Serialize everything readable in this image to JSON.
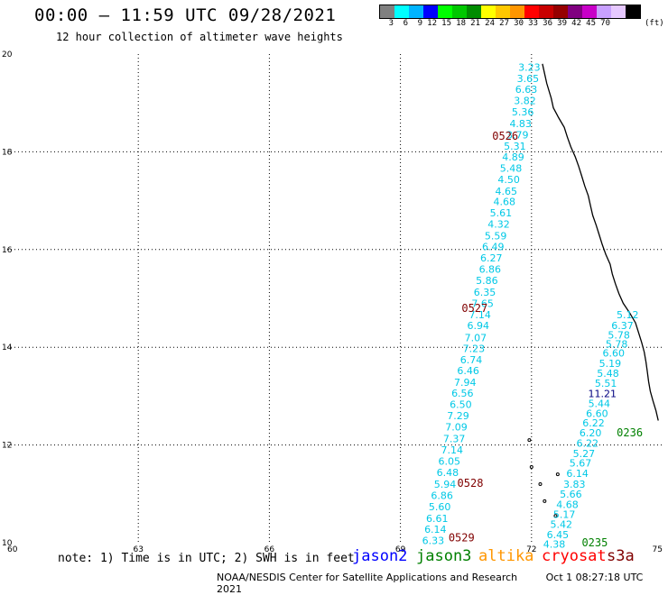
{
  "header": {
    "title": "00:00 – 11:59 UTC 09/28/2021",
    "subtitle": "12 hour collection of altimeter wave heights"
  },
  "legend": {
    "colors": [
      "#808080",
      "#00ffff",
      "#00b4ff",
      "#0000ff",
      "#00ff00",
      "#00c800",
      "#008c00",
      "#ffff00",
      "#ffc800",
      "#ff9600",
      "#ff0000",
      "#c80000",
      "#960000",
      "#800080",
      "#c800c8",
      "#c8a0ff",
      "#e6c8ff",
      "#000000"
    ],
    "labels": [
      "3",
      "6",
      "9",
      "12",
      "15",
      "18",
      "21",
      "24",
      "27",
      "30",
      "33",
      "36",
      "39",
      "42",
      "45",
      "70"
    ],
    "unit": "(ft)"
  },
  "axes": {
    "x_labels": [
      "60",
      "63",
      "66",
      "69",
      "72",
      "75"
    ],
    "y_labels": [
      "10",
      "12",
      "14",
      "16",
      "18",
      "20"
    ]
  },
  "tracks": [
    {
      "pass": "0526",
      "pass_color": "#800000",
      "pass_pos": [
        71.1,
        18.32
      ],
      "values": [
        "3.23",
        "3.65",
        "6.63",
        "3.82",
        "5.36",
        "4.83",
        "3.79",
        "5.31",
        "4.89",
        "5.48",
        "4.50",
        "4.65",
        "4.68",
        "5.61",
        "4.32",
        "5.59",
        "6.49",
        "6.27",
        "6.86",
        "5.86",
        "6.35",
        "7.65",
        "7.14"
      ],
      "lons": [
        71.95,
        71.92,
        71.88,
        71.85,
        71.8,
        71.75,
        71.68,
        71.62,
        71.58,
        71.53,
        71.48,
        71.42,
        71.38,
        71.3,
        71.25,
        71.18,
        71.12,
        71.08,
        71.05,
        70.98,
        70.93,
        70.88,
        70.82
      ],
      "lats": [
        19.73,
        19.5,
        19.28,
        19.05,
        18.82,
        18.58,
        18.35,
        18.12,
        17.9,
        17.67,
        17.44,
        17.2,
        16.98,
        16.75,
        16.52,
        16.28,
        16.06,
        15.83,
        15.6,
        15.37,
        15.13,
        14.9,
        14.67
      ],
      "color": "#00c8e6"
    },
    {
      "pass": "0527",
      "pass_color": "#800000",
      "pass_pos": [
        70.4,
        14.8
      ],
      "values": [
        "6.94",
        "7.07",
        "7.23",
        "6.74",
        "6.46",
        "7.94",
        "6.56",
        "6.50",
        "7.29",
        "7.09",
        "7.37",
        "7.14",
        "6.05",
        "6.48",
        "5.94",
        "6.86",
        "5.60",
        "6.61",
        "6.14",
        "6.33"
      ],
      "lons": [
        70.78,
        70.72,
        70.68,
        70.62,
        70.55,
        70.48,
        70.42,
        70.38,
        70.32,
        70.28,
        70.23,
        70.18,
        70.12,
        70.08,
        70.02,
        69.95,
        69.9,
        69.84,
        69.8,
        69.75
      ],
      "lats": [
        14.45,
        14.2,
        13.98,
        13.75,
        13.52,
        13.28,
        13.06,
        12.83,
        12.6,
        12.37,
        12.13,
        11.9,
        11.67,
        11.44,
        11.2,
        10.97,
        10.74,
        10.5,
        10.28,
        10.05
      ],
      "color": "#00c8e6"
    },
    {
      "pass": "0528",
      "pass_color": "#800000",
      "pass_pos": [
        70.3,
        11.22
      ],
      "values": [],
      "lons": [],
      "lats": [],
      "color": "#00c8e6"
    },
    {
      "pass": "0529",
      "pass_color": "#800000",
      "pass_pos": [
        70.1,
        10.1
      ],
      "values": [],
      "lons": [],
      "lats": [],
      "color": "#00c8e6"
    },
    {
      "pass": "0236",
      "pass_color": "#008000",
      "pass_pos": [
        73.95,
        12.25
      ],
      "values": [
        "5.12",
        "6.37",
        "5.78",
        "5.78",
        "6.60",
        "5.19",
        "5.48",
        "5.51",
        "11.21",
        "5.44",
        "6.60",
        "6.22",
        "6.20",
        "6.22",
        "5.27",
        "5.67",
        "6.14",
        "3.83",
        "5.66",
        "4.68",
        "5.17",
        "5.42",
        "6.45",
        "4.38"
      ],
      "lons": [
        74.2,
        74.08,
        74.0,
        73.95,
        73.88,
        73.8,
        73.75,
        73.7,
        73.62,
        73.55,
        73.5,
        73.42,
        73.35,
        73.28,
        73.2,
        73.12,
        73.05,
        72.98,
        72.9,
        72.82,
        72.75,
        72.68,
        72.6,
        72.52
      ],
      "lats": [
        14.67,
        14.45,
        14.25,
        14.07,
        13.88,
        13.67,
        13.47,
        13.27,
        13.05,
        12.85,
        12.65,
        12.45,
        12.25,
        12.04,
        11.83,
        11.63,
        11.42,
        11.2,
        11.0,
        10.78,
        10.58,
        10.38,
        10.17,
        9.97
      ],
      "color": "#00c8e6",
      "special": {
        "index": 8,
        "color": "#000080"
      }
    },
    {
      "pass": "0235",
      "pass_color": "#008000",
      "pass_pos": [
        73.15,
        10.0
      ],
      "values": [],
      "lons": [],
      "lats": [],
      "color": "#00c8e6"
    }
  ],
  "footer": {
    "note": "note: 1) Time is in UTC; 2) SWH is in feet",
    "satellites": [
      {
        "name": "jason2",
        "color": "#0000ff"
      },
      {
        "name": "jason3",
        "color": "#008000"
      },
      {
        "name": "altika",
        "color": "#ff9600"
      },
      {
        "name": "cryosat",
        "color": "#ff0000"
      },
      {
        "name": "s3a",
        "color": "#800000"
      }
    ],
    "credit": "NOAA/NESDIS Center for Satellite Applications and Research",
    "timestamp": "Oct  1 08:27:18 UTC 2021"
  }
}
